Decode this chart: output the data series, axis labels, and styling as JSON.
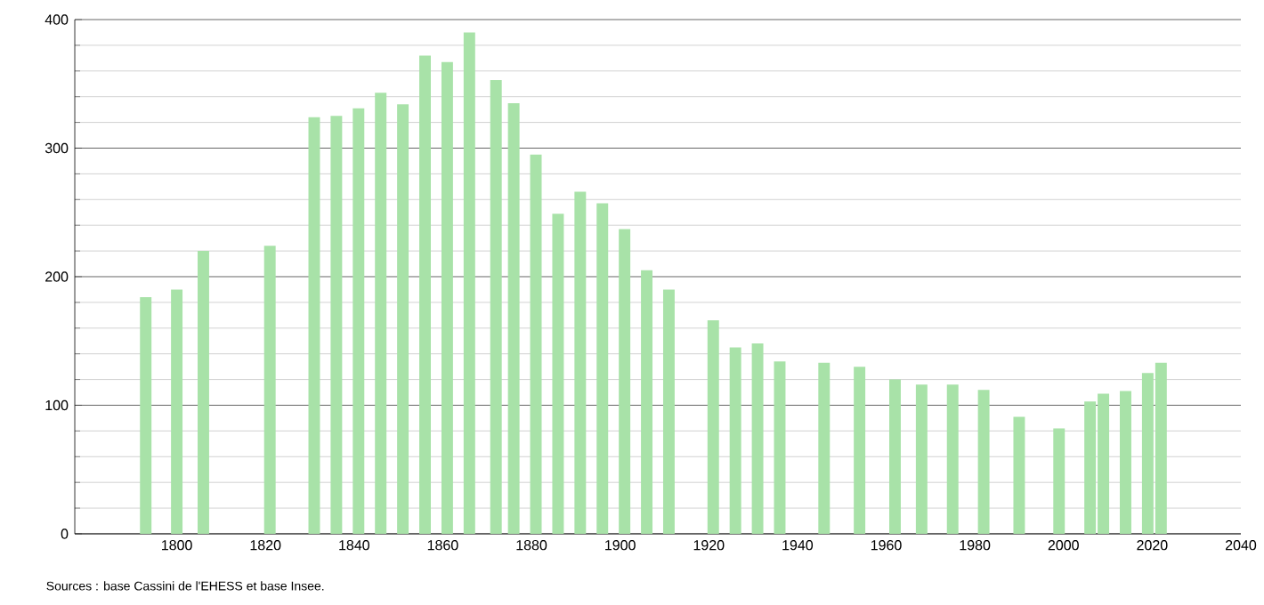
{
  "chart_data": {
    "type": "bar",
    "color": "#a8e2a8",
    "x": [
      1793,
      1800,
      1806,
      1821,
      1831,
      1836,
      1841,
      1846,
      1851,
      1856,
      1861,
      1866,
      1872,
      1876,
      1881,
      1886,
      1891,
      1896,
      1901,
      1906,
      1911,
      1921,
      1926,
      1931,
      1936,
      1946,
      1954,
      1962,
      1968,
      1975,
      1982,
      1990,
      1999,
      2006,
      2009,
      2014,
      2019,
      2022
    ],
    "values": [
      184,
      190,
      220,
      224,
      324,
      325,
      331,
      343,
      334,
      372,
      367,
      390,
      353,
      335,
      295,
      249,
      266,
      257,
      237,
      205,
      190,
      166,
      145,
      148,
      134,
      133,
      130,
      120,
      116,
      116,
      112,
      91,
      82,
      103,
      109,
      111,
      125,
      133
    ],
    "xlim": [
      1777,
      2040
    ],
    "xticks": [
      1800,
      1820,
      1840,
      1860,
      1880,
      1900,
      1920,
      1940,
      1960,
      1980,
      2000,
      2020,
      2040
    ],
    "ylim": [
      0,
      400
    ],
    "yticks": [
      0,
      100,
      200,
      300,
      400
    ],
    "grid": "y",
    "annotations": [
      "Sources : base Cassini de l'EHESS et base Insee."
    ]
  }
}
